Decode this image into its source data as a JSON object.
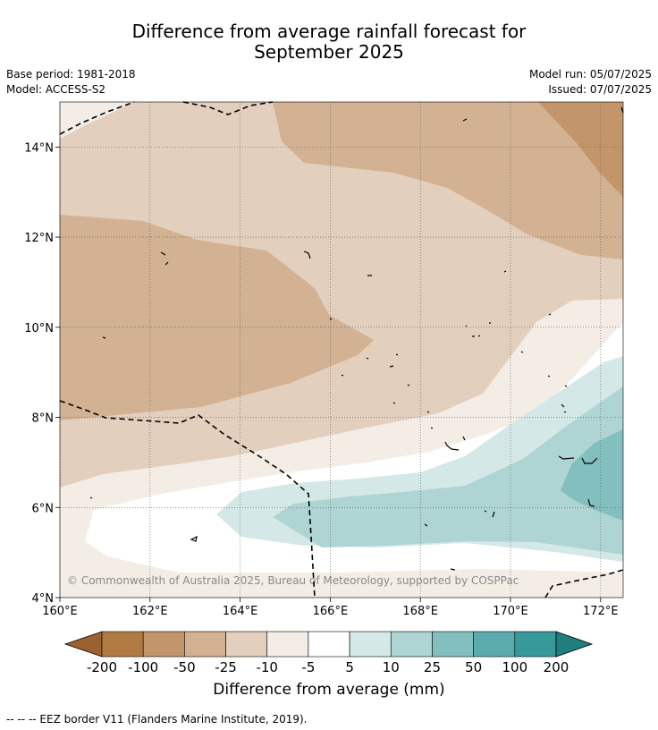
{
  "title_line1": "Difference from average rainfall forecast for",
  "title_line2": "September 2025",
  "base_period": "Base period: 1981-2018",
  "model": "Model: ACCESS-S2",
  "model_run": "Model run: 05/07/2025",
  "issued": "Issued: 07/07/2025",
  "copyright": "© Commonwealth of Australia 2025, Bureau of Meteorology, supported by COSPPac",
  "footnote": "-- -- -- EEZ border V11 (Flanders Marine Institute, 2019).",
  "map": {
    "lon_range": [
      160,
      172.5
    ],
    "lat_range": [
      4,
      15
    ],
    "x_ticks": [
      "160°E",
      "162°E",
      "164°E",
      "166°E",
      "168°E",
      "170°E",
      "172°E"
    ],
    "y_ticks": [
      "4°N",
      "6°N",
      "8°N",
      "10°N",
      "12°N",
      "14°N"
    ],
    "grid": true
  },
  "colorbar": {
    "title": "Difference from average (mm)",
    "labels": [
      "-200",
      "-100",
      "-50",
      "-25",
      "-10",
      "-5",
      "5",
      "10",
      "25",
      "50",
      "100",
      "200"
    ],
    "colors": [
      "#9c6131",
      "#b27a43",
      "#c2956a",
      "#d2b293",
      "#e3cfbe",
      "#f3ede6",
      "#ffffff",
      "#d4e9e7",
      "#aed4d4",
      "#84bfbf",
      "#5aacac",
      "#379999",
      "#1f7f7f"
    ]
  }
}
